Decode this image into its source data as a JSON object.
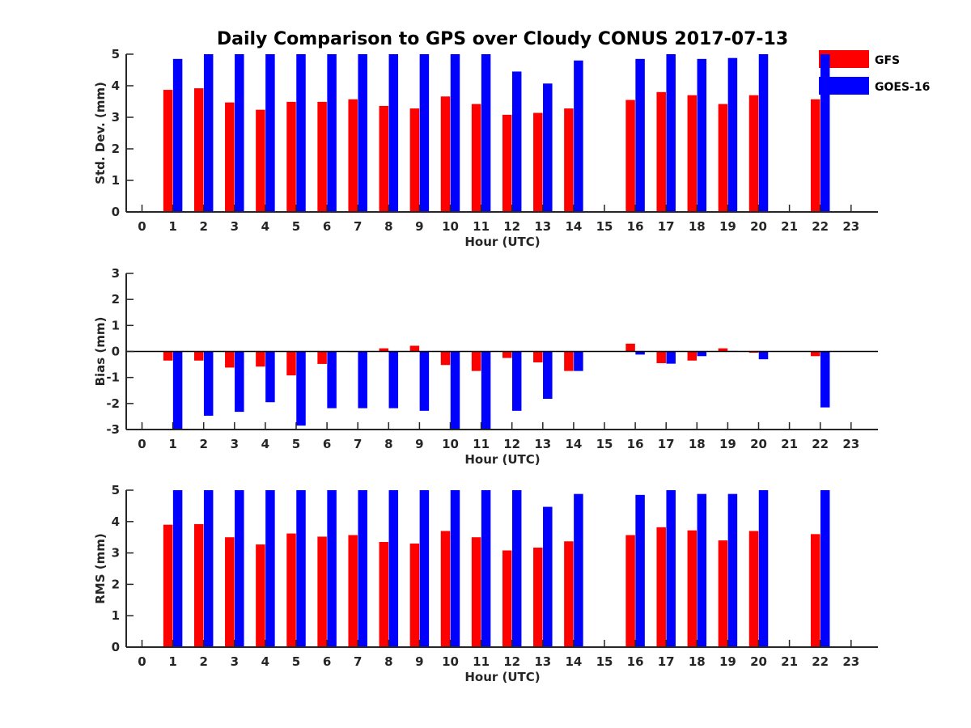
{
  "figure": {
    "title": "Daily Comparison to GPS over Cloudy CONUS 2017-07-13"
  },
  "legend": {
    "placement": "top-right",
    "items": [
      {
        "label": "GFS",
        "color": "#ff0000"
      },
      {
        "label": "GOES-16",
        "color": "#0000ff"
      }
    ]
  },
  "chart_data": [
    {
      "type": "bar",
      "xlabel": "Hour (UTC)",
      "ylabel": "Std. Dev. (mm)",
      "ylim": [
        0,
        5
      ],
      "yticks": [
        0,
        1,
        2,
        3,
        4,
        5
      ],
      "categories": [
        0,
        1,
        2,
        3,
        4,
        5,
        6,
        7,
        8,
        9,
        10,
        11,
        12,
        13,
        14,
        15,
        16,
        17,
        18,
        19,
        20,
        21,
        22,
        23
      ],
      "series": [
        {
          "name": "GFS",
          "color": "#ff0000",
          "values": [
            null,
            3.87,
            3.92,
            3.47,
            3.24,
            3.49,
            3.49,
            3.57,
            3.36,
            3.28,
            3.66,
            3.42,
            3.08,
            3.14,
            3.28,
            null,
            3.55,
            3.8,
            3.7,
            3.42,
            3.7,
            null,
            3.57,
            null
          ]
        },
        {
          "name": "GOES-16",
          "color": "#0000ff",
          "values": [
            null,
            4.85,
            5.0,
            5.0,
            5.0,
            5.0,
            5.0,
            5.0,
            5.0,
            5.0,
            5.0,
            5.0,
            4.45,
            4.07,
            4.8,
            null,
            4.85,
            5.0,
            4.85,
            4.88,
            5.0,
            null,
            5.0,
            null
          ]
        }
      ]
    },
    {
      "type": "bar",
      "xlabel": "Hour (UTC)",
      "ylabel": "Bias (mm)",
      "ylim": [
        -3,
        3
      ],
      "yticks": [
        -3,
        -2,
        -1,
        0,
        1,
        2,
        3
      ],
      "zero_line": true,
      "categories": [
        0,
        1,
        2,
        3,
        4,
        5,
        6,
        7,
        8,
        9,
        10,
        11,
        12,
        13,
        14,
        15,
        16,
        17,
        18,
        19,
        20,
        21,
        22,
        23
      ],
      "series": [
        {
          "name": "GFS",
          "color": "#ff0000",
          "values": [
            null,
            -0.35,
            -0.35,
            -0.62,
            -0.58,
            -0.92,
            -0.48,
            -0.02,
            0.12,
            0.22,
            -0.52,
            -0.75,
            -0.25,
            -0.42,
            -0.75,
            null,
            0.3,
            -0.45,
            -0.35,
            0.12,
            -0.05,
            null,
            -0.18,
            null
          ]
        },
        {
          "name": "GOES-16",
          "color": "#0000ff",
          "values": [
            null,
            -2.97,
            -2.47,
            -2.32,
            -1.95,
            -2.85,
            -2.18,
            -2.18,
            -2.18,
            -2.28,
            -3.0,
            -3.0,
            -2.28,
            -1.82,
            -0.75,
            null,
            -0.12,
            -0.47,
            -0.18,
            0.02,
            -0.3,
            null,
            -2.15,
            null
          ]
        }
      ]
    },
    {
      "type": "bar",
      "xlabel": "Hour (UTC)",
      "ylabel": "RMS (mm)",
      "ylim": [
        0,
        5
      ],
      "yticks": [
        0,
        1,
        2,
        3,
        4,
        5
      ],
      "categories": [
        0,
        1,
        2,
        3,
        4,
        5,
        6,
        7,
        8,
        9,
        10,
        11,
        12,
        13,
        14,
        15,
        16,
        17,
        18,
        19,
        20,
        21,
        22,
        23
      ],
      "series": [
        {
          "name": "GFS",
          "color": "#ff0000",
          "values": [
            null,
            3.9,
            3.92,
            3.5,
            3.27,
            3.62,
            3.52,
            3.57,
            3.35,
            3.3,
            3.7,
            3.5,
            3.08,
            3.17,
            3.37,
            null,
            3.57,
            3.82,
            3.72,
            3.4,
            3.7,
            null,
            3.6,
            null
          ]
        },
        {
          "name": "GOES-16",
          "color": "#0000ff",
          "values": [
            null,
            5.0,
            5.0,
            5.0,
            5.0,
            5.0,
            5.0,
            5.0,
            5.0,
            5.0,
            5.0,
            5.0,
            5.0,
            4.47,
            4.88,
            null,
            4.85,
            5.0,
            4.88,
            4.88,
            5.0,
            null,
            5.0,
            null
          ]
        }
      ]
    }
  ]
}
